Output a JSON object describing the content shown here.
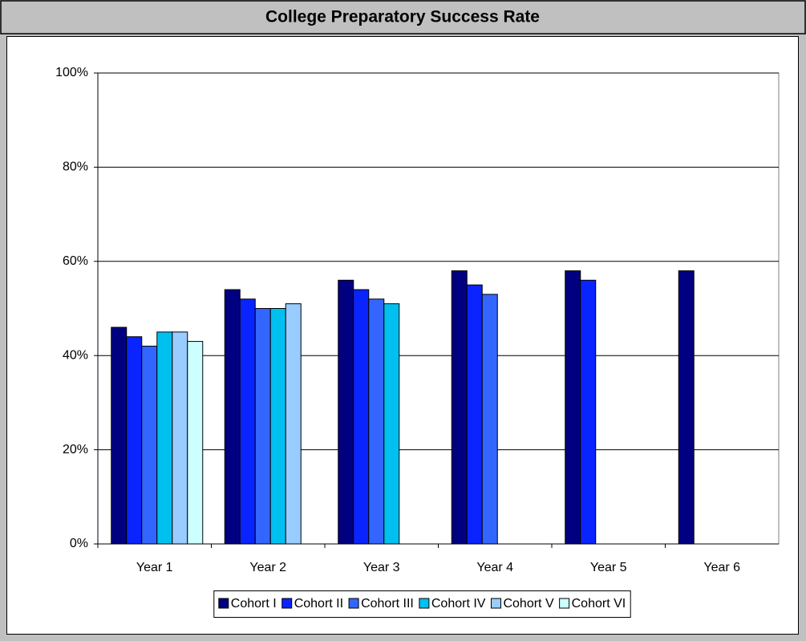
{
  "chart_data": {
    "type": "bar",
    "title": "College Preparatory Success Rate",
    "categories": [
      "Year 1",
      "Year 2",
      "Year 3",
      "Year 4",
      "Year 5",
      "Year 6"
    ],
    "series": [
      {
        "name": "Cohort I",
        "color": "#000080",
        "values": [
          46,
          54,
          56,
          58,
          58,
          58
        ]
      },
      {
        "name": "Cohort II",
        "color": "#0a24ff",
        "values": [
          44,
          52,
          54,
          55,
          56,
          null
        ]
      },
      {
        "name": "Cohort III",
        "color": "#3366ff",
        "values": [
          42,
          50,
          52,
          53,
          null,
          null
        ]
      },
      {
        "name": "Cohort IV",
        "color": "#00c0ef",
        "values": [
          45,
          50,
          51,
          null,
          null,
          null
        ]
      },
      {
        "name": "Cohort V",
        "color": "#99ccff",
        "values": [
          45,
          51,
          null,
          null,
          null,
          null
        ]
      },
      {
        "name": "Cohort VI",
        "color": "#ccffff",
        "values": [
          43,
          null,
          null,
          null,
          null,
          null
        ]
      }
    ],
    "ylim": [
      0,
      100
    ],
    "yticks": [
      {
        "value": 0,
        "label": "0%"
      },
      {
        "value": 20,
        "label": "20%"
      },
      {
        "value": 40,
        "label": "40%"
      },
      {
        "value": 60,
        "label": "60%"
      },
      {
        "value": 80,
        "label": "80%"
      },
      {
        "value": 100,
        "label": "100%"
      }
    ],
    "grid": true,
    "legend": "bottom"
  }
}
